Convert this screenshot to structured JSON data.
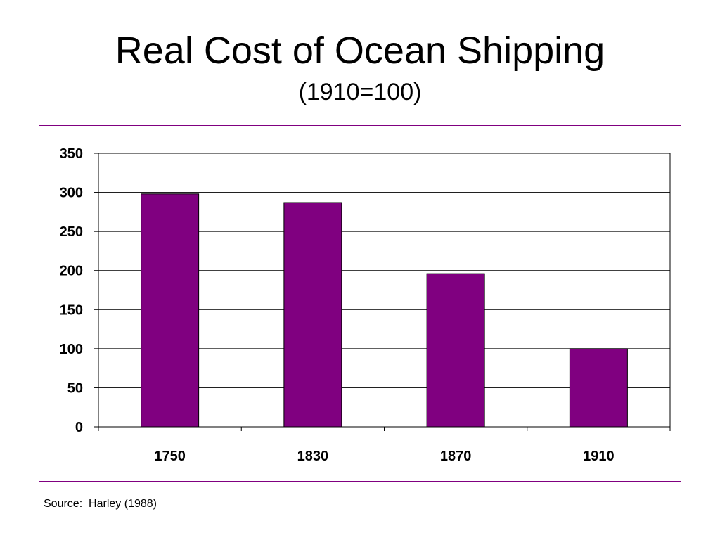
{
  "slide": {
    "title": "Real Cost of Ocean Shipping",
    "subtitle": "(1910=100)",
    "source": "Source:  Harley (1988)"
  },
  "colors": {
    "bar_fill": "#800080",
    "frame_border": "#800080",
    "gridline": "#000000"
  },
  "chart_data": {
    "type": "bar",
    "title": "",
    "xlabel": "",
    "ylabel": "",
    "categories": [
      "1750",
      "1830",
      "1870",
      "1910"
    ],
    "values": [
      298,
      287,
      196,
      100
    ],
    "ylim": [
      0,
      350
    ],
    "yticks": [
      0,
      50,
      100,
      150,
      200,
      250,
      300,
      350
    ],
    "grid": true,
    "legend": false
  }
}
